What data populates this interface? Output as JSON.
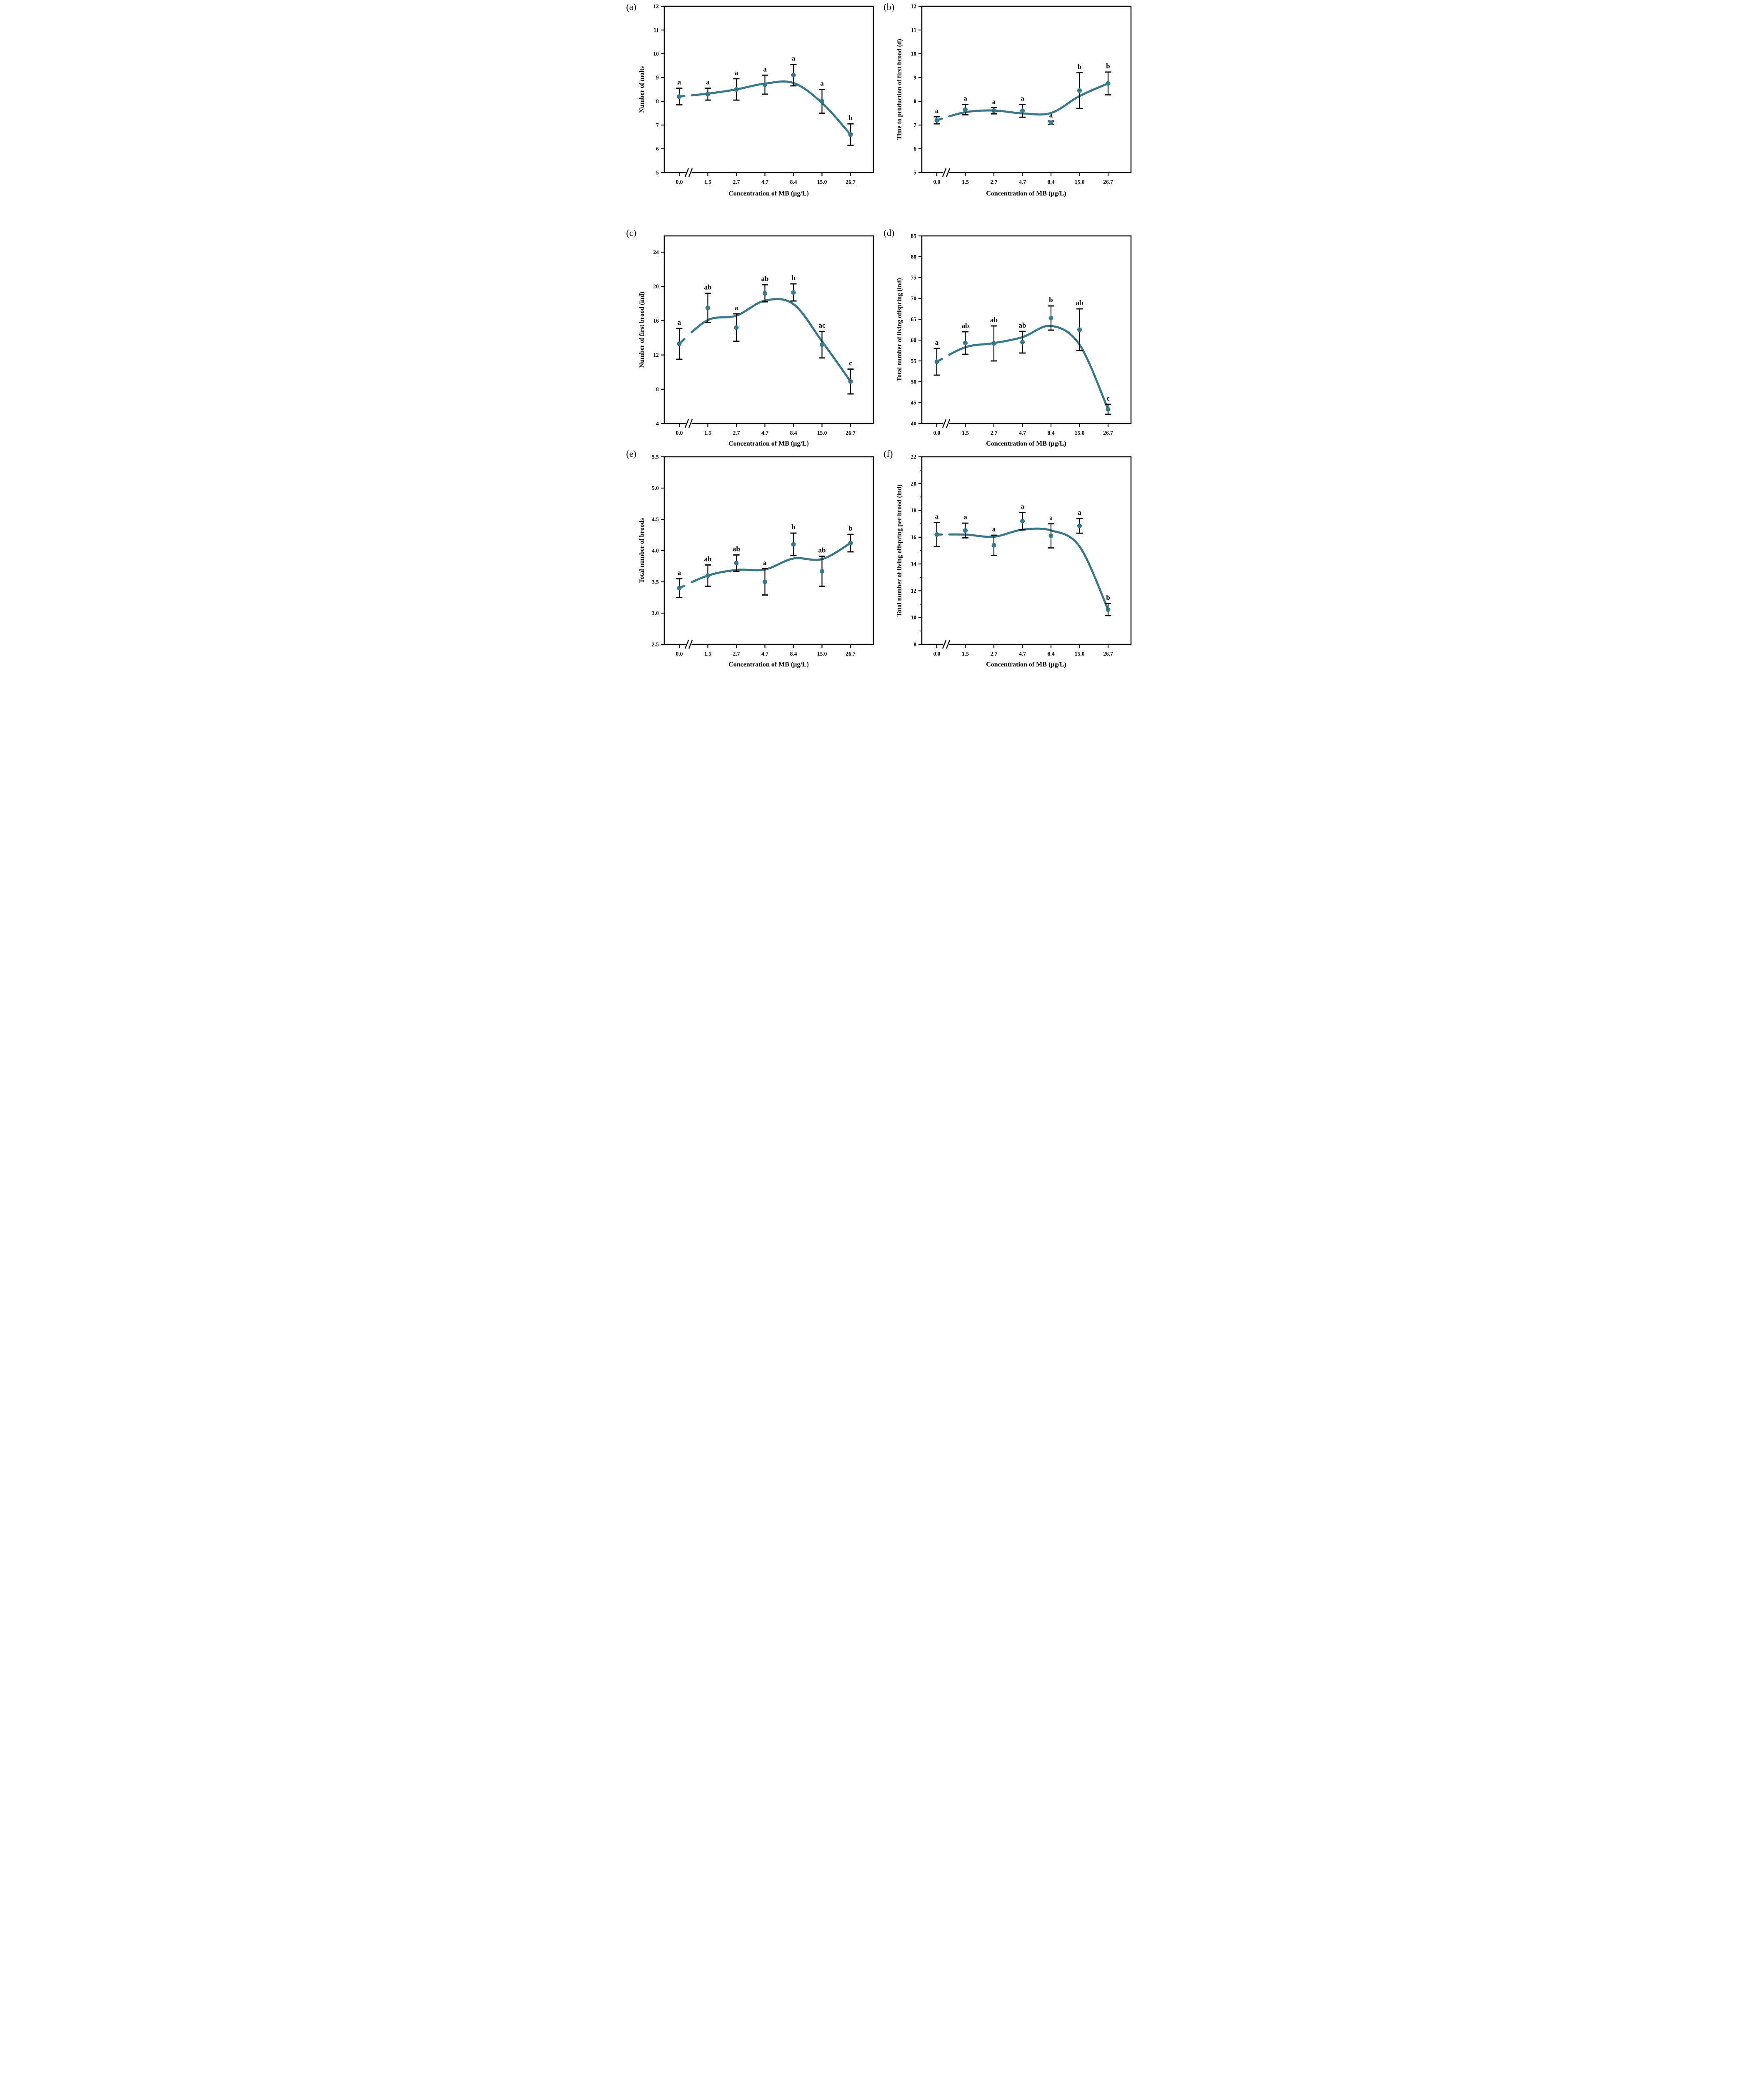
{
  "figure": {
    "accent_color": "#35798c",
    "error_bar_color": "#000000",
    "axis_color": "#000000",
    "background_color": "#ffffff"
  },
  "chart_data": [
    {
      "type": "line",
      "panel_label": "(a)",
      "y_title": "Number of molts",
      "x_title": "Concentration of MB (μg/L)",
      "categories": [
        "0.0",
        "1.5",
        "2.7",
        "4.7",
        "8.4",
        "15.0",
        "26.7"
      ],
      "values": [
        8.2,
        8.3,
        8.5,
        8.7,
        9.1,
        8.0,
        6.6
      ],
      "errors": [
        0.35,
        0.25,
        0.45,
        0.4,
        0.45,
        0.5,
        0.45
      ],
      "sig_letters": [
        "a",
        "a",
        "a",
        "a",
        "a",
        "a",
        "b"
      ],
      "sig_letter_bold": [
        true,
        true,
        true,
        true,
        true,
        true,
        true
      ],
      "ylim": [
        5,
        12
      ],
      "yticks": [
        5,
        6,
        7,
        8,
        9,
        10,
        11,
        12
      ],
      "ytick_labels": [
        "5",
        "6",
        "7",
        "8",
        "9",
        "10",
        "11",
        "12"
      ],
      "yticks_minor": [],
      "x_axis_break": true,
      "grid": false
    },
    {
      "type": "line",
      "panel_label": "(b)",
      "y_title": "Time to production of first brood (d)",
      "x_title": "Concentration of MB (μg/L)",
      "categories": [
        "0.0",
        "1.5",
        "2.7",
        "4.7",
        "8.4",
        "15.0",
        "26.7"
      ],
      "values": [
        7.2,
        7.65,
        7.6,
        7.6,
        7.1,
        8.45,
        8.75
      ],
      "errors": [
        0.15,
        0.22,
        0.13,
        0.27,
        0.07,
        0.75,
        0.48
      ],
      "sig_letters": [
        "a",
        "a",
        "a",
        "a",
        "a",
        "b",
        "b"
      ],
      "sig_letter_bold": [
        true,
        true,
        true,
        true,
        true,
        true,
        true
      ],
      "ylim": [
        5,
        12
      ],
      "yticks": [
        5,
        6,
        7,
        8,
        9,
        10,
        11,
        12
      ],
      "ytick_labels": [
        "5",
        "6",
        "7",
        "8",
        "9",
        "10",
        "11",
        "12"
      ],
      "yticks_minor": [],
      "x_axis_break": true,
      "grid": false
    },
    {
      "type": "line",
      "panel_label": "(c)",
      "y_title": "Number of first brood (ind)",
      "x_title": "Concentration of MB (μg/L)",
      "categories": [
        "0.0",
        "1.5",
        "2.7",
        "4.7",
        "8.4",
        "15.0",
        "26.7"
      ],
      "values": [
        13.3,
        17.5,
        15.2,
        19.2,
        19.3,
        13.2,
        8.9
      ],
      "errors": [
        1.8,
        1.7,
        1.6,
        1.0,
        1.0,
        1.55,
        1.45
      ],
      "sig_letters": [
        "a",
        "ab",
        "a",
        "ab",
        "b",
        "ac",
        "c"
      ],
      "sig_letter_bold": [
        true,
        true,
        true,
        true,
        true,
        true,
        true
      ],
      "ylim": [
        4,
        25.9
      ],
      "yticks": [
        4,
        8,
        12,
        16,
        20,
        24
      ],
      "ytick_labels": [
        "4",
        "8",
        "12",
        "16",
        "20",
        "24"
      ],
      "yticks_minor": [],
      "x_axis_break": true,
      "grid": false
    },
    {
      "type": "line",
      "panel_label": "(d)",
      "y_title": "Total number of living offspring (ind)",
      "x_title": "Concentration of MB (μg/L)",
      "categories": [
        "0.0",
        "1.5",
        "2.7",
        "4.7",
        "8.4",
        "15.0",
        "26.7"
      ],
      "values": [
        54.8,
        59.3,
        59.2,
        59.5,
        65.3,
        62.5,
        43.4
      ],
      "errors": [
        3.2,
        2.7,
        4.2,
        2.6,
        2.9,
        5.0,
        1.2
      ],
      "sig_letters": [
        "a",
        "ab",
        "ab",
        "ab",
        "b",
        "ab",
        "c"
      ],
      "sig_letter_bold": [
        true,
        true,
        true,
        true,
        true,
        true,
        true
      ],
      "ylim": [
        40,
        85
      ],
      "yticks": [
        40,
        45,
        50,
        55,
        60,
        65,
        70,
        75,
        80,
        85
      ],
      "ytick_labels": [
        "40",
        "45",
        "50",
        "55",
        "60",
        "65",
        "70",
        "75",
        "80",
        "85"
      ],
      "yticks_minor": [],
      "x_axis_break": true,
      "grid": false
    },
    {
      "type": "line",
      "panel_label": "(e)",
      "y_title": "Total number of broods",
      "x_title": "Concentration of MB (μg/L)",
      "categories": [
        "0.0",
        "1.5",
        "2.7",
        "4.7",
        "8.4",
        "15.0",
        "26.7"
      ],
      "values": [
        3.4,
        3.6,
        3.8,
        3.5,
        4.1,
        3.67,
        4.12
      ],
      "errors": [
        0.15,
        0.17,
        0.13,
        0.21,
        0.18,
        0.24,
        0.14
      ],
      "sig_letters": [
        "a",
        "ab",
        "ab",
        "a",
        "b",
        "ab",
        "b"
      ],
      "sig_letter_bold": [
        true,
        true,
        true,
        true,
        true,
        true,
        true
      ],
      "ylim": [
        2.5,
        5.5
      ],
      "yticks": [
        2.5,
        3.0,
        3.5,
        4.0,
        4.5,
        5.0,
        5.5
      ],
      "ytick_labels": [
        "2.5",
        "3.0",
        "3.5",
        "4.0",
        "4.5",
        "5.0",
        "5.5"
      ],
      "yticks_minor": [],
      "x_axis_break": true,
      "grid": false
    },
    {
      "type": "line",
      "panel_label": "(f)",
      "y_title": "Total number of living offspring per brood (ind)",
      "x_title": "Concentration of MB (μg/L)",
      "categories": [
        "0.0",
        "1.5",
        "2.7",
        "4.7",
        "8.4",
        "15.0",
        "26.7"
      ],
      "values": [
        16.2,
        16.5,
        15.4,
        17.2,
        16.1,
        16.85,
        10.6
      ],
      "errors": [
        0.9,
        0.55,
        0.75,
        0.65,
        0.9,
        0.55,
        0.45
      ],
      "sig_letters": [
        "a",
        "a",
        "a",
        "a",
        "a",
        "a",
        "b"
      ],
      "sig_letter_bold": [
        true,
        true,
        true,
        true,
        false,
        true,
        true
      ],
      "ylim": [
        8,
        22
      ],
      "yticks": [
        8,
        10,
        12,
        14,
        16,
        18,
        20,
        22
      ],
      "ytick_labels": [
        "8",
        "10",
        "12",
        "14",
        "16",
        "18",
        "20",
        "22"
      ],
      "yticks_minor": [
        9,
        11,
        13,
        15,
        17,
        19,
        21
      ],
      "x_axis_break": true,
      "grid": false
    }
  ]
}
